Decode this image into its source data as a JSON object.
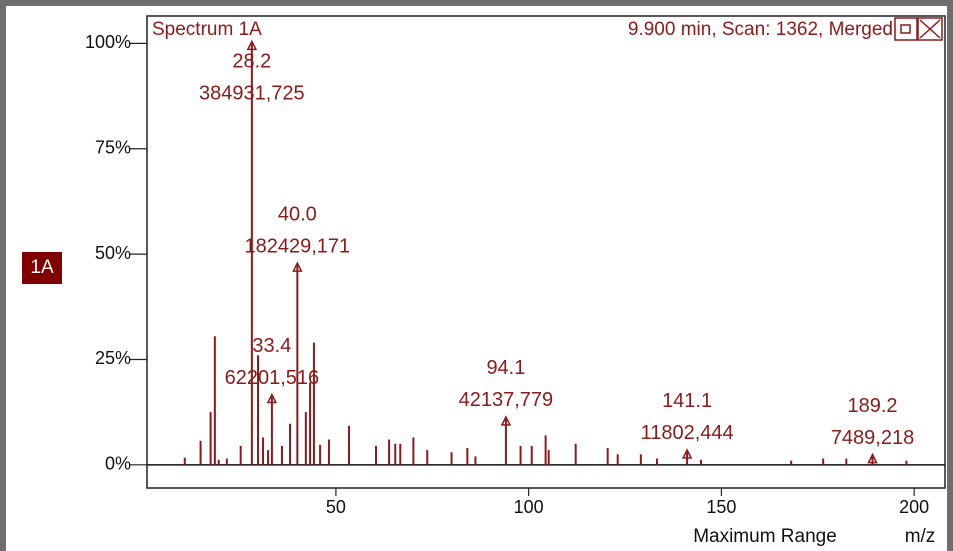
{
  "chart_data": {
    "type": "stem",
    "title": "Spectrum 1A",
    "subtitle": "9.900 min, Scan: 1362, Merged",
    "trace_label": "1A",
    "x_label": "m/z",
    "x_range_label": "Maximum Range",
    "color": "#8b1a1a",
    "xlim": [
      1,
      208
    ],
    "xticks": [
      50,
      100,
      150,
      200
    ],
    "ylim": [
      -5.5,
      106.5
    ],
    "yticks": [
      {
        "value": 0,
        "label": "0%"
      },
      {
        "value": 25,
        "label": "25%"
      },
      {
        "value": 50,
        "label": "50%"
      },
      {
        "value": 75,
        "label": "75%"
      },
      {
        "value": 100,
        "label": "100%"
      }
    ],
    "x": [
      10.8,
      14.9,
      17.5,
      18.6,
      19.6,
      21.7,
      25.3,
      28.2,
      29.8,
      31.1,
      32.4,
      33.4,
      36.0,
      38.1,
      40.0,
      42.2,
      43.3,
      44.3,
      45.9,
      48.2,
      53.4,
      60.4,
      63.8,
      65.4,
      66.7,
      70.1,
      73.7,
      80.0,
      84.1,
      86.2,
      94.1,
      97.9,
      100.8,
      104.4,
      105.2,
      112.2,
      120.5,
      123.1,
      129.1,
      133.3,
      141.1,
      144.7,
      168.1,
      176.4,
      182.4,
      189.2,
      198.0
    ],
    "values": [
      1.7,
      5.7,
      12.5,
      30.5,
      1.2,
      1.5,
      4.5,
      100,
      26,
      6.5,
      3.5,
      16.2,
      4.5,
      9.75,
      47.4,
      12.5,
      19.5,
      29,
      4.75,
      6,
      9.25,
      4.5,
      6,
      5,
      5,
      6.5,
      3.5,
      3,
      4,
      2,
      10.9,
      4.5,
      4.5,
      7,
      3.5,
      5,
      4,
      2.5,
      2.5,
      1.5,
      3.07,
      1.2,
      1,
      1.5,
      1.5,
      1.95,
      1
    ],
    "annotations": [
      {
        "x": 28.2,
        "label": "28.2",
        "value_label": "384931,725"
      },
      {
        "x": 40.0,
        "label": "40.0",
        "value_label": "182429,171"
      },
      {
        "x": 33.4,
        "label": "33.4",
        "value_label": "62201,516"
      },
      {
        "x": 94.1,
        "label": "94.1",
        "value_label": "42137,779"
      },
      {
        "x": 141.1,
        "label": "141.1",
        "value_label": "11802,444"
      },
      {
        "x": 189.2,
        "label": "189.2",
        "value_label": "7489,218"
      }
    ]
  }
}
